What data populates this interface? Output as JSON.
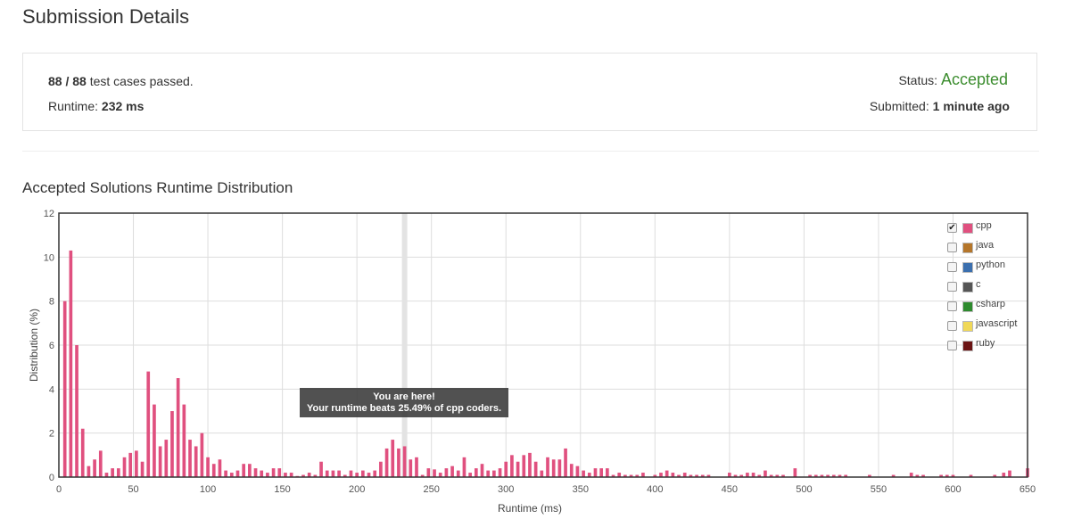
{
  "page": {
    "title": "Submission Details"
  },
  "summary": {
    "passed_count": "88 / 88",
    "passed_text": "test cases passed.",
    "runtime_label": "Runtime:",
    "runtime_value": "232 ms",
    "status_label": "Status:",
    "status_value": "Accepted",
    "submitted_label": "Submitted:",
    "submitted_value": "1 minute ago"
  },
  "section": {
    "title": "Accepted Solutions Runtime Distribution"
  },
  "tooltip": {
    "line1": "You are here!",
    "line2": "Your runtime beats 25.49% of cpp coders."
  },
  "colors": {
    "cpp": "#e0507f",
    "java": "#b5762a",
    "python": "#3b6fae",
    "c": "#555555",
    "csharp": "#2e8b2e",
    "javascript": "#f0d858",
    "ruby": "#6b1414",
    "highlight": "#e3e3e3",
    "grid": "#dddddd",
    "accepted": "#3c8d2f"
  },
  "legend": [
    {
      "label": "cpp",
      "checked": true,
      "color": "#e0507f"
    },
    {
      "label": "java",
      "checked": false,
      "color": "#b5762a"
    },
    {
      "label": "python",
      "checked": false,
      "color": "#3b6fae"
    },
    {
      "label": "c",
      "checked": false,
      "color": "#555555"
    },
    {
      "label": "csharp",
      "checked": false,
      "color": "#2e8b2e"
    },
    {
      "label": "javascript",
      "checked": false,
      "color": "#f0d858"
    },
    {
      "label": "ruby",
      "checked": false,
      "color": "#6b1414"
    }
  ],
  "chart_data": {
    "type": "bar",
    "xlabel": "Runtime (ms)",
    "ylabel": "Distribution (%)",
    "xlim": [
      0,
      650
    ],
    "ylim": [
      0,
      12
    ],
    "xticks": [
      0,
      50,
      100,
      150,
      200,
      250,
      300,
      350,
      400,
      450,
      500,
      550,
      600,
      650
    ],
    "yticks": [
      0,
      2,
      4,
      6,
      8,
      10,
      12
    ],
    "grid": true,
    "highlight_x": 232,
    "series": [
      {
        "name": "cpp",
        "x": [
          4,
          8,
          12,
          16,
          20,
          24,
          28,
          32,
          36,
          40,
          44,
          48,
          52,
          56,
          60,
          64,
          68,
          72,
          76,
          80,
          84,
          88,
          92,
          96,
          100,
          104,
          108,
          112,
          116,
          120,
          124,
          128,
          132,
          136,
          140,
          144,
          148,
          152,
          156,
          160,
          164,
          168,
          172,
          176,
          180,
          184,
          188,
          192,
          196,
          200,
          204,
          208,
          212,
          216,
          220,
          224,
          228,
          232,
          236,
          240,
          244,
          248,
          252,
          256,
          260,
          264,
          268,
          272,
          276,
          280,
          284,
          288,
          292,
          296,
          300,
          304,
          308,
          312,
          316,
          320,
          324,
          328,
          332,
          336,
          340,
          344,
          348,
          352,
          356,
          360,
          364,
          368,
          372,
          376,
          380,
          384,
          388,
          392,
          400,
          404,
          408,
          412,
          416,
          420,
          424,
          428,
          432,
          436,
          450,
          454,
          458,
          462,
          466,
          470,
          474,
          478,
          482,
          486,
          494,
          504,
          508,
          512,
          516,
          520,
          524,
          528,
          544,
          560,
          572,
          576,
          580,
          592,
          596,
          600,
          612,
          628,
          634,
          638,
          650
        ],
        "values": [
          8.0,
          10.3,
          6.0,
          2.2,
          0.5,
          0.8,
          1.2,
          0.2,
          0.4,
          0.4,
          0.9,
          1.1,
          1.2,
          0.7,
          4.8,
          3.3,
          1.4,
          1.7,
          3.0,
          4.5,
          3.3,
          1.7,
          1.4,
          2.0,
          0.9,
          0.6,
          0.8,
          0.3,
          0.2,
          0.3,
          0.6,
          0.6,
          0.4,
          0.3,
          0.2,
          0.4,
          0.4,
          0.2,
          0.2,
          0.05,
          0.1,
          0.2,
          0.1,
          0.7,
          0.3,
          0.3,
          0.3,
          0.1,
          0.3,
          0.2,
          0.3,
          0.2,
          0.3,
          0.7,
          1.3,
          1.7,
          1.3,
          1.4,
          0.8,
          0.9,
          0.1,
          0.4,
          0.35,
          0.2,
          0.4,
          0.5,
          0.3,
          0.9,
          0.2,
          0.4,
          0.6,
          0.3,
          0.3,
          0.4,
          0.7,
          1.0,
          0.7,
          1.0,
          1.1,
          0.7,
          0.3,
          0.9,
          0.8,
          0.8,
          1.3,
          0.6,
          0.5,
          0.3,
          0.2,
          0.4,
          0.4,
          0.4,
          0.1,
          0.2,
          0.1,
          0.1,
          0.1,
          0.2,
          0.1,
          0.2,
          0.3,
          0.2,
          0.1,
          0.2,
          0.1,
          0.1,
          0.1,
          0.1,
          0.2,
          0.1,
          0.1,
          0.2,
          0.2,
          0.1,
          0.3,
          0.1,
          0.1,
          0.1,
          0.4,
          0.1,
          0.1,
          0.1,
          0.1,
          0.1,
          0.1,
          0.1,
          0.1,
          0.1,
          0.2,
          0.1,
          0.1,
          0.1,
          0.1,
          0.1,
          0.1,
          0.1,
          0.2,
          0.3,
          0.4
        ]
      }
    ]
  }
}
